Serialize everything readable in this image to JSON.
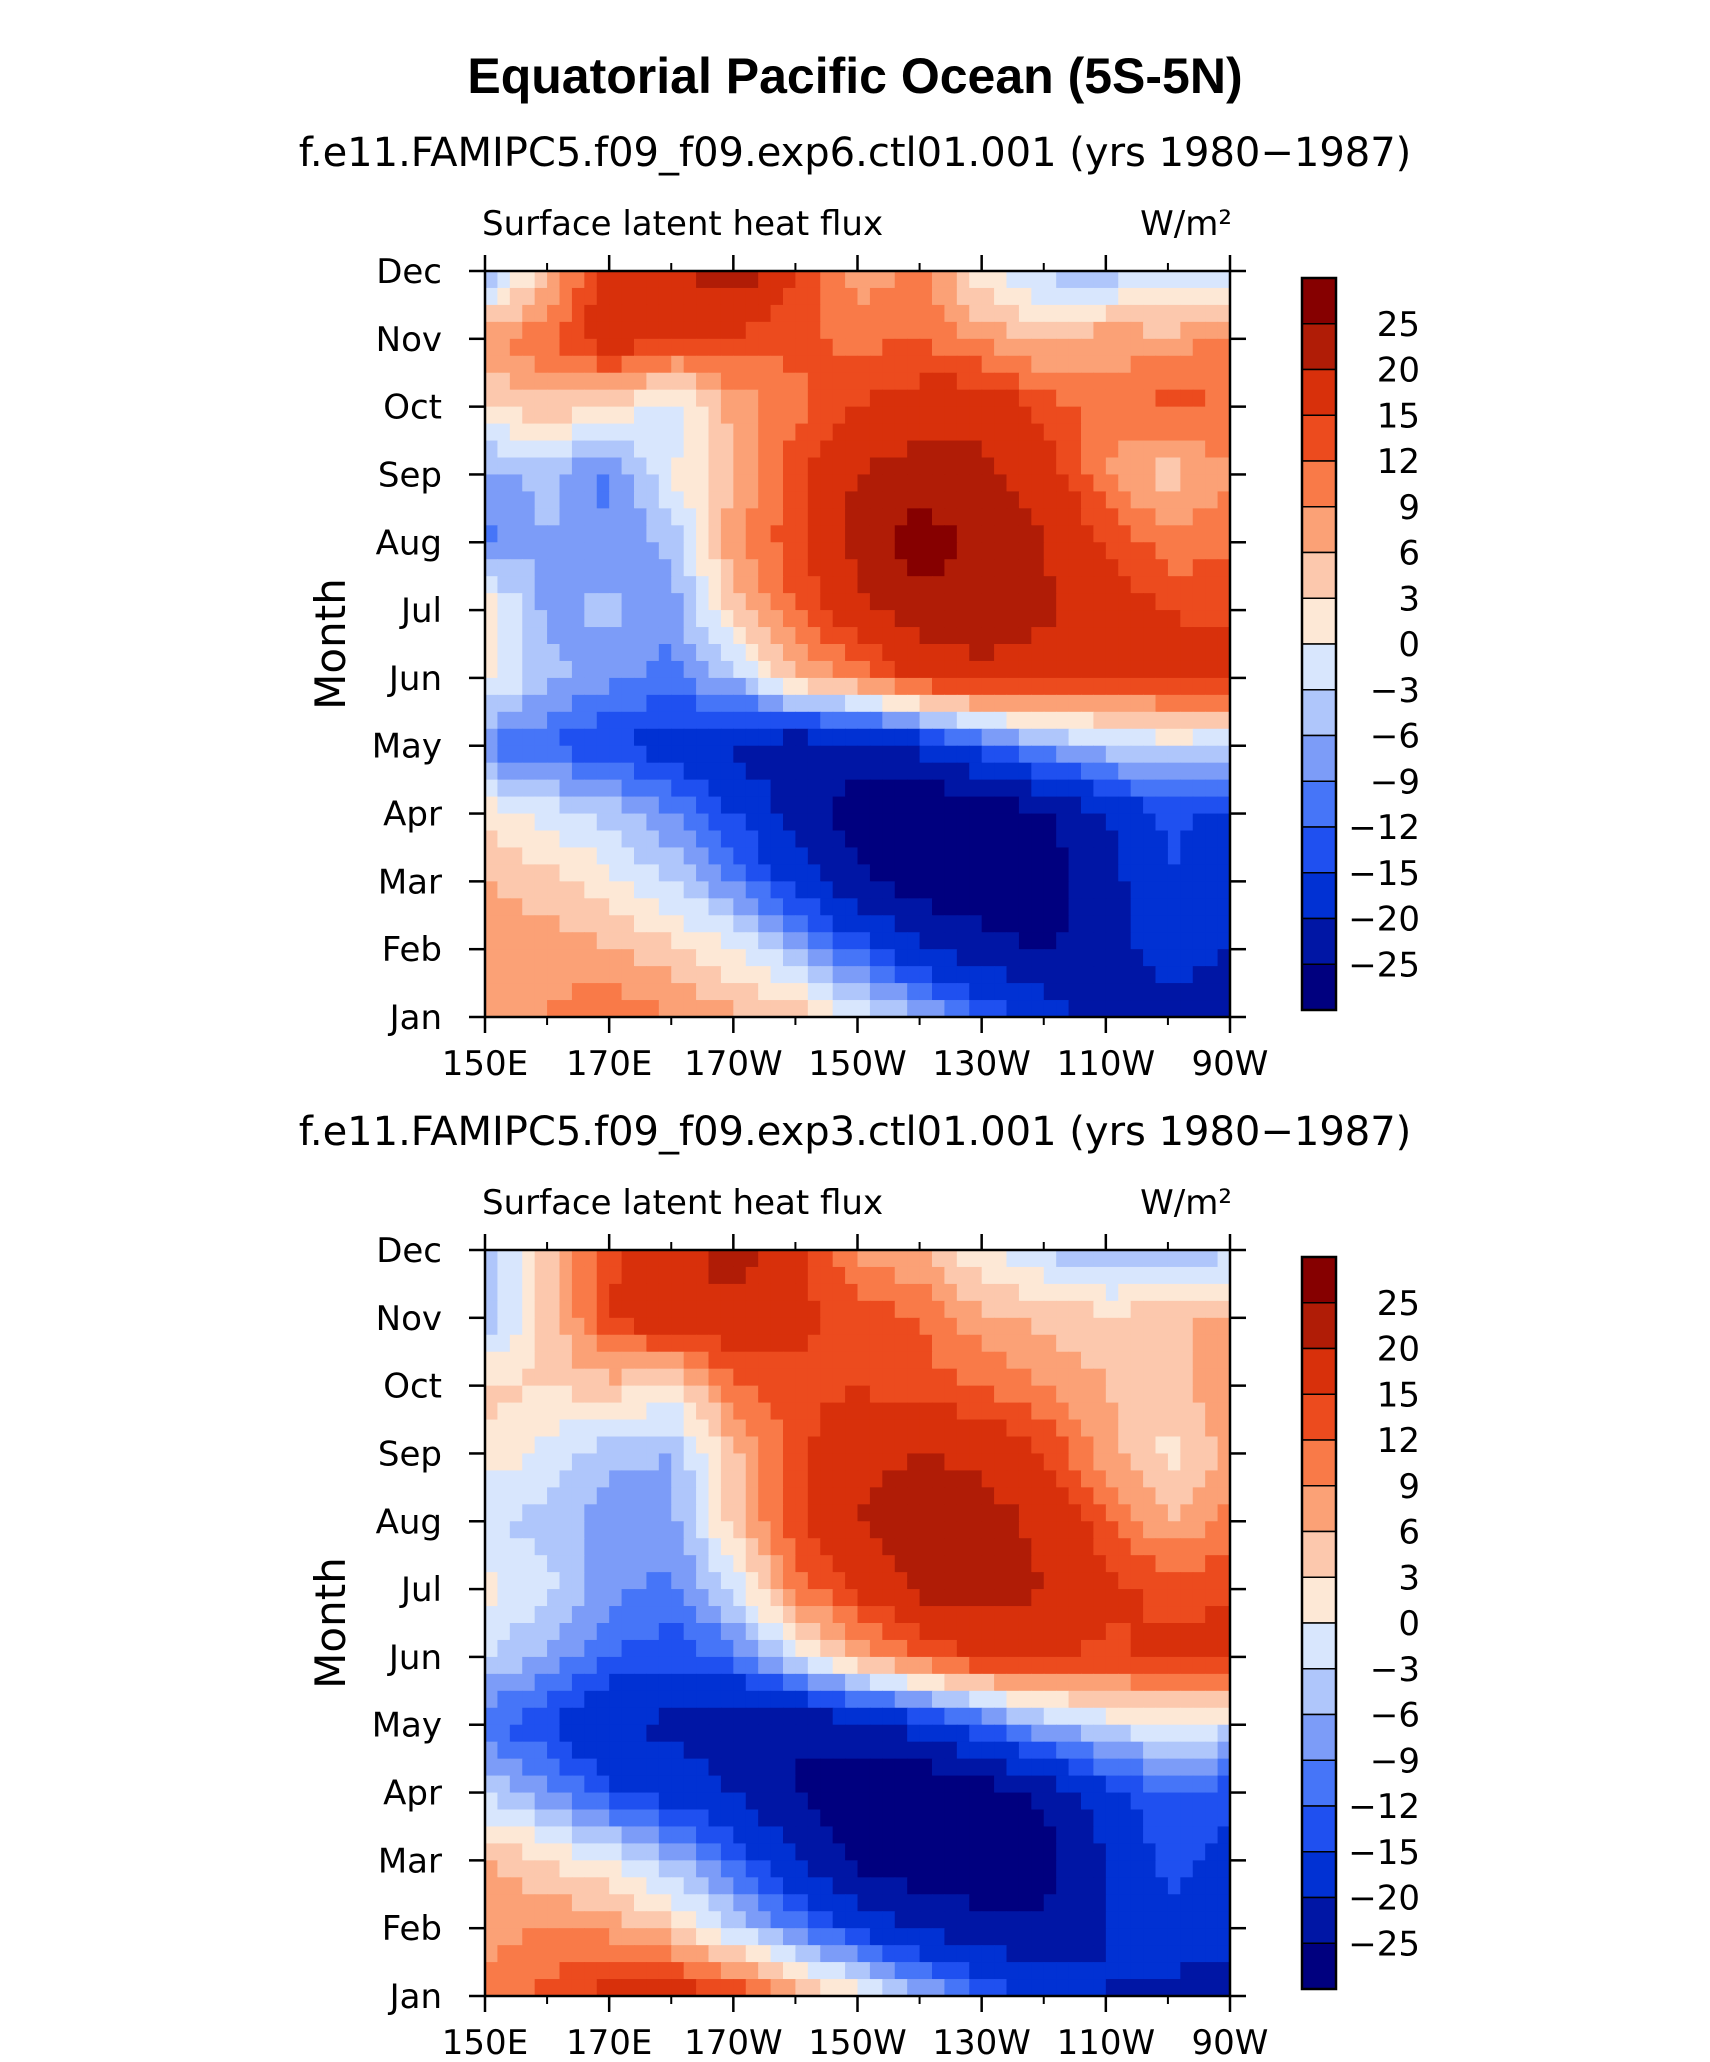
{
  "page": {
    "title": "Equatorial Pacific Ocean (5S-5N)"
  },
  "colors": {
    "levels": [
      -25,
      -20,
      -15,
      -12,
      -9,
      -6,
      -3,
      0,
      3,
      6,
      9,
      12,
      15,
      20,
      25
    ],
    "fills": [
      "#00007f",
      "#0016a5",
      "#0131d3",
      "#1f50f0",
      "#4675f8",
      "#7c9cf8",
      "#afc6fb",
      "#d8e6fd",
      "#fde8d6",
      "#fcc8ad",
      "#fba176",
      "#f97a48",
      "#ec4b1e",
      "#d8300b",
      "#b01c06",
      "#860000"
    ]
  },
  "chart_data": [
    {
      "type": "heatmap",
      "title": "f.e11.FAMIPC5.f09_f09.exp6.ctl01.001 (yrs 1980−1987)",
      "left_string": "Surface latent heat flux",
      "right_string": "W/m²",
      "xlabel": "",
      "ylabel": "Month",
      "x_ticks": [
        "150E",
        "170E",
        "170W",
        "150W",
        "130W",
        "110W",
        "90W"
      ],
      "x_lon": [
        150,
        170,
        190,
        210,
        230,
        250,
        270
      ],
      "xlim": [
        150,
        270
      ],
      "y_ticks": [
        "Jan",
        "Feb",
        "Mar",
        "Apr",
        "May",
        "Jun",
        "Jul",
        "Aug",
        "Sep",
        "Oct",
        "Nov",
        "Dec"
      ],
      "ylim": [
        0,
        11
      ],
      "colorbar_labels": [
        "25",
        "20",
        "15",
        "12",
        "9",
        "6",
        "3",
        "0",
        "−3",
        "−6",
        "−9",
        "−12",
        "−15",
        "−20",
        "−25"
      ],
      "z_lon": [
        150,
        160,
        170,
        180,
        190,
        200,
        210,
        220,
        230,
        240,
        250,
        260,
        270
      ],
      "z": [
        [
          8,
          9,
          12,
          9,
          7,
          5,
          0,
          -5,
          -12,
          -17,
          -22,
          -22,
          -23
        ],
        [
          9,
          8,
          6,
          4,
          0,
          -6,
          -13,
          -19,
          -23,
          -26,
          -22,
          -18,
          -20
        ],
        [
          6,
          4,
          1,
          -3,
          -9,
          -17,
          -24,
          -28,
          -29,
          -28,
          -22,
          -15,
          -18
        ],
        [
          2,
          -1,
          -4,
          -9,
          -15,
          -22,
          -27,
          -30,
          -29,
          -26,
          -20,
          -14,
          -16
        ],
        [
          -10,
          -12,
          -15,
          -17,
          -21,
          -24,
          -23,
          -19,
          -13,
          -7,
          -4,
          -2,
          -3
        ],
        [
          2,
          -5,
          -8,
          -10,
          -5,
          6,
          10,
          16,
          18,
          17,
          15,
          16,
          17
        ],
        [
          3,
          -7,
          -5,
          -8,
          4,
          12,
          18,
          23,
          24,
          21,
          17,
          15,
          14
        ],
        [
          -10,
          -6,
          -9,
          -5,
          8,
          14,
          22,
          27,
          24,
          20,
          15,
          10,
          11
        ],
        [
          -7,
          -5,
          -10,
          0,
          6,
          14,
          20,
          23,
          21,
          18,
          9,
          4,
          9
        ],
        [
          3,
          5,
          3,
          -2,
          7,
          11,
          15,
          17,
          19,
          14,
          10,
          13,
          12
        ],
        [
          8,
          12,
          18,
          15,
          14,
          13,
          11,
          12,
          8,
          5,
          8,
          7,
          10
        ],
        [
          -7,
          5,
          18,
          18,
          24,
          15,
          7,
          10,
          1,
          -4,
          -5,
          -3,
          -5
        ]
      ]
    },
    {
      "type": "heatmap",
      "title": "f.e11.FAMIPC5.f09_f09.exp3.ctl01.001 (yrs 1980−1987)",
      "left_string": "Surface latent heat flux",
      "right_string": "W/m²",
      "xlabel": "",
      "ylabel": "Month",
      "x_ticks": [
        "150E",
        "170E",
        "170W",
        "150W",
        "130W",
        "110W",
        "90W"
      ],
      "x_lon": [
        150,
        170,
        190,
        210,
        230,
        250,
        270
      ],
      "xlim": [
        150,
        270
      ],
      "y_ticks": [
        "Jan",
        "Feb",
        "Mar",
        "Apr",
        "May",
        "Jun",
        "Jul",
        "Aug",
        "Sep",
        "Oct",
        "Nov",
        "Dec"
      ],
      "ylim": [
        0,
        11
      ],
      "colorbar_labels": [
        "25",
        "20",
        "15",
        "12",
        "9",
        "6",
        "3",
        "0",
        "−3",
        "−6",
        "−9",
        "−12",
        "−15",
        "−20",
        "−25"
      ],
      "z_lon": [
        150,
        160,
        170,
        180,
        190,
        200,
        210,
        220,
        230,
        240,
        250,
        260,
        270
      ],
      "z": [
        [
          10,
          13,
          17,
          18,
          15,
          8,
          2,
          -5,
          -12,
          -17,
          -20,
          -22,
          -23
        ],
        [
          8,
          9,
          8,
          4,
          -3,
          -10,
          -16,
          -21,
          -23,
          -24,
          -20,
          -16,
          -18
        ],
        [
          6,
          3,
          0,
          -5,
          -12,
          -20,
          -26,
          -29,
          -29,
          -27,
          -20,
          -14,
          -16
        ],
        [
          -3,
          -8,
          -14,
          -17,
          -20,
          -25,
          -28,
          -30,
          -28,
          -24,
          -17,
          -12,
          -14
        ],
        [
          -11,
          -15,
          -20,
          -21,
          -24,
          -25,
          -22,
          -18,
          -12,
          -6,
          -2,
          0,
          -2
        ],
        [
          -3,
          -7,
          -12,
          -14,
          -11,
          -2,
          6,
          12,
          16,
          16,
          14,
          16,
          17
        ],
        [
          1,
          -2,
          -8,
          -10,
          -2,
          10,
          16,
          21,
          22,
          20,
          16,
          14,
          14
        ],
        [
          -3,
          -4,
          -8,
          -7,
          4,
          14,
          20,
          24,
          22,
          19,
          13,
          6,
          10
        ],
        [
          2,
          -1,
          -5,
          -6,
          5,
          14,
          18,
          20,
          19,
          15,
          7,
          2,
          7
        ],
        [
          4,
          3,
          5,
          2,
          11,
          14,
          15,
          13,
          12,
          9,
          6,
          5,
          8
        ],
        [
          -6,
          4,
          15,
          19,
          19,
          16,
          14,
          12,
          7,
          5,
          4,
          5,
          7
        ],
        [
          -4,
          4,
          14,
          18,
          22,
          17,
          8,
          6,
          0,
          -3,
          -7,
          -6,
          -4
        ]
      ]
    }
  ]
}
